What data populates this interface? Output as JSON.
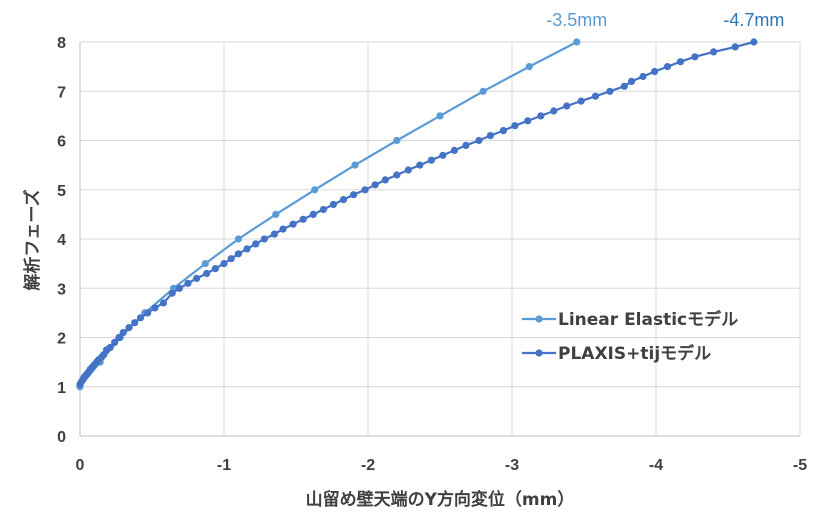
{
  "chart_data": {
    "type": "line",
    "title": "",
    "xlabel": "山留め壁天端のY方向変位（mm）",
    "ylabel": "解析フェーズ",
    "xlim": [
      0,
      -5
    ],
    "ylim": [
      0,
      8
    ],
    "x_ticks": [
      "0",
      "-1",
      "-2",
      "-3",
      "-4",
      "-5"
    ],
    "y_ticks": [
      "0",
      "1",
      "2",
      "3",
      "4",
      "5",
      "6",
      "7",
      "8"
    ],
    "grid": true,
    "legend_position": "right",
    "series": [
      {
        "name": "Linear Elasticモデル",
        "color": "#5B9BD5",
        "points": [
          [
            0,
            1.0
          ],
          [
            -0.14,
            1.5
          ],
          [
            -0.28,
            2.0
          ],
          [
            -0.45,
            2.5
          ],
          [
            -0.65,
            3.0
          ],
          [
            -0.87,
            3.5
          ],
          [
            -1.1,
            4.0
          ],
          [
            -1.36,
            4.5
          ],
          [
            -1.63,
            5.0
          ],
          [
            -1.91,
            5.5
          ],
          [
            -2.2,
            6.0
          ],
          [
            -2.5,
            6.5
          ],
          [
            -2.8,
            7.0
          ],
          [
            -3.12,
            7.5
          ],
          [
            -3.45,
            8.0
          ]
        ]
      },
      {
        "name": "PLAXIS+tijモデル",
        "color": "#4472C4",
        "points": [
          [
            0,
            1.05
          ],
          [
            -0.01,
            1.1
          ],
          [
            -0.02,
            1.15
          ],
          [
            -0.03,
            1.2
          ],
          [
            -0.045,
            1.25
          ],
          [
            -0.06,
            1.3
          ],
          [
            -0.07,
            1.35
          ],
          [
            -0.085,
            1.4
          ],
          [
            -0.1,
            1.45
          ],
          [
            -0.115,
            1.5
          ],
          [
            -0.13,
            1.55
          ],
          [
            -0.15,
            1.6
          ],
          [
            -0.165,
            1.65
          ],
          [
            -0.185,
            1.75
          ],
          [
            -0.21,
            1.8
          ],
          [
            -0.24,
            1.9
          ],
          [
            -0.27,
            2.0
          ],
          [
            -0.3,
            2.1
          ],
          [
            -0.34,
            2.2
          ],
          [
            -0.38,
            2.3
          ],
          [
            -0.42,
            2.4
          ],
          [
            -0.47,
            2.5
          ],
          [
            -0.52,
            2.6
          ],
          [
            -0.58,
            2.7
          ],
          [
            -0.64,
            2.9
          ],
          [
            -0.69,
            3.0
          ],
          [
            -0.75,
            3.1
          ],
          [
            -0.81,
            3.2
          ],
          [
            -0.88,
            3.3
          ],
          [
            -0.94,
            3.4
          ],
          [
            -1.0,
            3.5
          ],
          [
            -1.05,
            3.6
          ],
          [
            -1.1,
            3.7
          ],
          [
            -1.16,
            3.8
          ],
          [
            -1.22,
            3.9
          ],
          [
            -1.28,
            4.0
          ],
          [
            -1.35,
            4.1
          ],
          [
            -1.41,
            4.2
          ],
          [
            -1.48,
            4.3
          ],
          [
            -1.55,
            4.4
          ],
          [
            -1.62,
            4.5
          ],
          [
            -1.69,
            4.6
          ],
          [
            -1.76,
            4.7
          ],
          [
            -1.83,
            4.8
          ],
          [
            -1.9,
            4.9
          ],
          [
            -1.98,
            5.0
          ],
          [
            -2.05,
            5.1
          ],
          [
            -2.12,
            5.2
          ],
          [
            -2.2,
            5.3
          ],
          [
            -2.28,
            5.4
          ],
          [
            -2.36,
            5.5
          ],
          [
            -2.44,
            5.6
          ],
          [
            -2.52,
            5.7
          ],
          [
            -2.6,
            5.8
          ],
          [
            -2.68,
            5.9
          ],
          [
            -2.77,
            6.0
          ],
          [
            -2.85,
            6.1
          ],
          [
            -2.94,
            6.2
          ],
          [
            -3.02,
            6.3
          ],
          [
            -3.11,
            6.4
          ],
          [
            -3.2,
            6.5
          ],
          [
            -3.29,
            6.6
          ],
          [
            -3.38,
            6.7
          ],
          [
            -3.48,
            6.8
          ],
          [
            -3.58,
            6.9
          ],
          [
            -3.68,
            7.0
          ],
          [
            -3.78,
            7.1
          ],
          [
            -3.83,
            7.2
          ],
          [
            -3.91,
            7.3
          ],
          [
            -3.99,
            7.4
          ],
          [
            -4.08,
            7.5
          ],
          [
            -4.17,
            7.6
          ],
          [
            -4.27,
            7.7
          ],
          [
            -4.4,
            7.8
          ],
          [
            -4.55,
            7.9
          ],
          [
            -4.68,
            8.0
          ]
        ]
      }
    ],
    "annotations": [
      {
        "text": "-3.5mm",
        "color": "#5B9BD5",
        "series": 0
      },
      {
        "text": "-4.7mm",
        "color": "#2E75B6",
        "series": 1
      }
    ]
  }
}
